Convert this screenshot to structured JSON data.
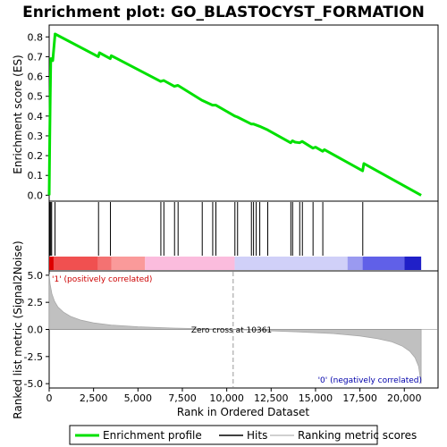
{
  "chart_data": {
    "type": "line",
    "title": "Enrichment plot: GO_BLASTOCYST_FORMATION",
    "top_panel": {
      "ylabel": "Enrichment score (ES)",
      "ylim": [
        -0.03,
        0.86
      ],
      "yticks": [
        "0.0",
        "0.1",
        "0.2",
        "0.3",
        "0.4",
        "0.5",
        "0.6",
        "0.7",
        "0.8"
      ],
      "ytick_values": [
        0.0,
        0.1,
        0.2,
        0.3,
        0.4,
        0.5,
        0.6,
        0.7,
        0.8
      ],
      "series": [
        {
          "name": "Enrichment profile",
          "color": "#00e000",
          "x": [
            0,
            30,
            60,
            90,
            140,
            200,
            330,
            2770,
            2830,
            3440,
            3500,
            6280,
            6450,
            7050,
            7250,
            8600,
            9200,
            9380,
            10450,
            10600,
            11380,
            11500,
            11650,
            11850,
            12300,
            13600,
            13700,
            13850,
            14100,
            14250,
            14850,
            15000,
            15400,
            15500,
            17650,
            17720,
            20950
          ],
          "y": [
            0.0,
            0.27,
            0.5,
            0.69,
            0.69,
            0.68,
            0.815,
            0.7,
            0.72,
            0.69,
            0.705,
            0.575,
            0.58,
            0.55,
            0.555,
            0.48,
            0.455,
            0.455,
            0.4,
            0.395,
            0.36,
            0.36,
            0.355,
            0.348,
            0.33,
            0.265,
            0.275,
            0.268,
            0.265,
            0.272,
            0.238,
            0.243,
            0.222,
            0.23,
            0.123,
            0.16,
            0.0
          ]
        }
      ]
    },
    "hits": {
      "name": "Hits",
      "x": [
        40,
        90,
        140,
        330,
        2780,
        3450,
        6290,
        6460,
        7060,
        7260,
        8620,
        9210,
        9390,
        10460,
        10610,
        11390,
        11510,
        11660,
        11860,
        12310,
        13610,
        13710,
        14110,
        14260,
        14860,
        15410,
        17660
      ]
    },
    "bottom_panel": {
      "ylabel": "Ranked list metric (Signal2Noise)",
      "xlabel": "Rank in Ordered Dataset",
      "ylim": [
        -5.4,
        5.4
      ],
      "yticks": [
        "5.0",
        "2.5",
        "0.0",
        "-2.5",
        "-5.0"
      ],
      "ytick_values": [
        5.0,
        2.5,
        0.0,
        -2.5,
        -5.0
      ],
      "xlim": [
        0,
        21900
      ],
      "xticks": [
        "0",
        "2,500",
        "5,000",
        "7,500",
        "10,000",
        "12,500",
        "15,000",
        "17,500",
        "20,000"
      ],
      "xtick_values": [
        0,
        2500,
        5000,
        7500,
        10000,
        12500,
        15000,
        17500,
        20000
      ],
      "zero_cross_label": "Zero cross at 10361",
      "zero_cross": 10361,
      "positive_label": "'1' (positively correlated)",
      "negative_label": "'0' (negatively correlated)",
      "metric_curve": {
        "name": "Ranking metric scores",
        "x": [
          0,
          50,
          150,
          300,
          500,
          800,
          1200,
          1800,
          2500,
          3500,
          5000,
          7000,
          9000,
          10361,
          12000,
          14000,
          16000,
          17500,
          18500,
          19300,
          19900,
          20300,
          20600,
          20800,
          20950
        ],
        "y": [
          5.1,
          4.2,
          3.3,
          2.6,
          2.05,
          1.6,
          1.2,
          0.85,
          0.6,
          0.4,
          0.25,
          0.12,
          0.05,
          0.0,
          -0.1,
          -0.22,
          -0.38,
          -0.6,
          -0.85,
          -1.15,
          -1.55,
          -2.0,
          -2.6,
          -3.4,
          -5.0
        ]
      }
    },
    "colorbar_segments": [
      {
        "from": 0,
        "to": 250,
        "color": "#dd0000"
      },
      {
        "from": 250,
        "to": 2750,
        "color": "#f05050"
      },
      {
        "from": 2750,
        "to": 3500,
        "color": "#f47272"
      },
      {
        "from": 3500,
        "to": 5400,
        "color": "#fa9a9a"
      },
      {
        "from": 5400,
        "to": 10450,
        "color": "#fbbcdd"
      },
      {
        "from": 10450,
        "to": 16800,
        "color": "#d0d0f8"
      },
      {
        "from": 16800,
        "to": 17650,
        "color": "#9a9af0"
      },
      {
        "from": 17650,
        "to": 20000,
        "color": "#6060e8"
      },
      {
        "from": 20000,
        "to": 20950,
        "color": "#2020c8"
      }
    ],
    "legend": [
      {
        "label": "Enrichment profile",
        "color": "#00e000"
      },
      {
        "label": "Hits",
        "color": "#000000"
      },
      {
        "label": "Ranking metric scores",
        "color": "#c0c0c0"
      }
    ]
  }
}
